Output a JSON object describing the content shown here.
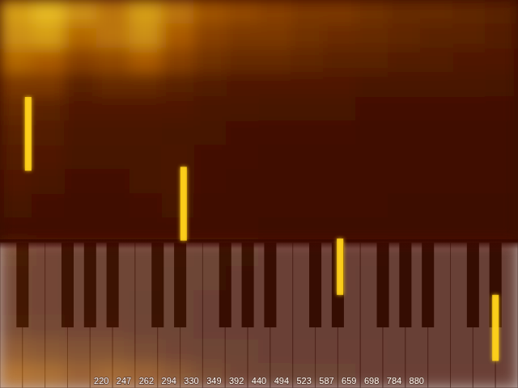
{
  "chart_data": {
    "type": "spectrogram",
    "categories": [
      null,
      null,
      null,
      null,
      "220",
      "247",
      "262",
      "294",
      "330",
      "349",
      "392",
      "440",
      "494",
      "523",
      "587",
      "659",
      "698",
      "784",
      "880",
      null,
      null,
      null,
      null
    ],
    "tick_labels": "x",
    "ylim": [
      0,
      100
    ],
    "color": "#ffd21a",
    "cell_range": [
      0,
      1
    ],
    "cells": [
      [
        0.75,
        0.85,
        0.7,
        0.6,
        0.75,
        0.6,
        0.45,
        0.4,
        0.35,
        0.3,
        0.3,
        0.25,
        0.2,
        0.2,
        0.18,
        0.15
      ],
      [
        0.7,
        0.75,
        0.55,
        0.6,
        0.7,
        0.5,
        0.35,
        0.3,
        0.3,
        0.25,
        0.22,
        0.2,
        0.18,
        0.15,
        0.15,
        0.12
      ],
      [
        0.55,
        0.5,
        0.35,
        0.4,
        0.5,
        0.35,
        0.25,
        0.2,
        0.2,
        0.18,
        0.15,
        0.15,
        0.12,
        0.12,
        0.1,
        0.1
      ],
      [
        0.3,
        0.3,
        0.15,
        0.2,
        0.2,
        0.15,
        0.12,
        0.1,
        0.1,
        0.1,
        0.1,
        0.08,
        0.08,
        0.08,
        0.08,
        0.06
      ],
      [
        0.2,
        0.15,
        0.1,
        0.1,
        0.1,
        0.1,
        0.08,
        0.08,
        0.06,
        0.06,
        0.06,
        0.05,
        0.05,
        0.05,
        0.05,
        0.05
      ],
      [
        0.15,
        0.12,
        0.08,
        0.08,
        0.08,
        0.06,
        0.06,
        0.05,
        0.05,
        0.05,
        0.05,
        0.04,
        0.04,
        0.04,
        0.04,
        0.04
      ],
      [
        0.12,
        0.1,
        0.06,
        0.06,
        0.06,
        0.08,
        0.05,
        0.05,
        0.04,
        0.04,
        0.04,
        0.04,
        0.03,
        0.03,
        0.03,
        0.03
      ],
      [
        0.1,
        0.08,
        0.05,
        0.05,
        0.06,
        0.08,
        0.05,
        0.04,
        0.04,
        0.04,
        0.03,
        0.03,
        0.03,
        0.03,
        0.03,
        0.03
      ],
      [
        0.06,
        0.05,
        0.04,
        0.04,
        0.05,
        0.06,
        0.04,
        0.03,
        0.03,
        0.03,
        0.03,
        0.03,
        0.02,
        0.02,
        0.02,
        0.02
      ],
      [
        0.04,
        0.04,
        0.03,
        0.03,
        0.03,
        0.04,
        0.03,
        0.03,
        0.02,
        0.02,
        0.02,
        0.02,
        0.02,
        0.02,
        0.02,
        0.02
      ],
      [
        0.15,
        0.1,
        0.08,
        0.08,
        0.08,
        0.08,
        0.06,
        0.06,
        0.05,
        0.05,
        0.05,
        0.05,
        0.04,
        0.04,
        0.04,
        0.04
      ],
      [
        0.12,
        0.1,
        0.08,
        0.08,
        0.08,
        0.06,
        0.06,
        0.05,
        0.05,
        0.05,
        0.05,
        0.04,
        0.04,
        0.04,
        0.04,
        0.04
      ],
      [
        0.12,
        0.1,
        0.08,
        0.08,
        0.06,
        0.06,
        0.05,
        0.05,
        0.05,
        0.04,
        0.04,
        0.04,
        0.04,
        0.04,
        0.04,
        0.04
      ],
      [
        0.15,
        0.12,
        0.1,
        0.1,
        0.08,
        0.06,
        0.05,
        0.05,
        0.05,
        0.04,
        0.04,
        0.04,
        0.04,
        0.04,
        0.04,
        0.04
      ],
      [
        0.3,
        0.25,
        0.2,
        0.2,
        0.15,
        0.1,
        0.08,
        0.06,
        0.05,
        0.05,
        0.05,
        0.05,
        0.04,
        0.04,
        0.04,
        0.04
      ],
      [
        0.5,
        0.45,
        0.35,
        0.4,
        0.35,
        0.25,
        0.15,
        0.1,
        0.08,
        0.06,
        0.06,
        0.05,
        0.05,
        0.05,
        0.05,
        0.05
      ]
    ],
    "peaks": {
      "x": [
        0.75,
        7.65,
        14.6,
        21.5
      ],
      "y_start": [
        25,
        43,
        61.5,
        76
      ],
      "y_end": [
        44,
        62,
        76,
        93
      ]
    }
  }
}
